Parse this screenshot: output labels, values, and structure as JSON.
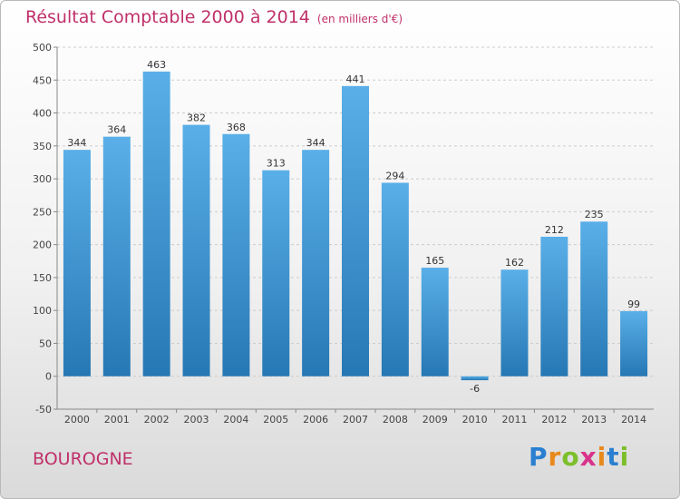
{
  "header": {
    "title": "Résultat Comptable 2000 à 2014",
    "subtitle": "(en milliers d'€)"
  },
  "footer": {
    "place": "BOUROGNE"
  },
  "logo": {
    "letters": [
      "P",
      "r",
      "o",
      "x",
      "i",
      "t",
      "i"
    ],
    "colors": [
      "#2a7fd0",
      "#e8891b",
      "#7cbf2a",
      "#d8338a",
      "#e8891b",
      "#2a7fd0",
      "#7cbf2a"
    ]
  },
  "colors": {
    "bar_top": "#5aafe8",
    "bar_bottom": "#2678b4",
    "grid": "#cccccc",
    "title": "#c0306a"
  },
  "chart_data": {
    "type": "bar",
    "title": "Résultat Comptable 2000 à 2014",
    "subtitle": "(en milliers d'€)",
    "categories": [
      "2000",
      "2001",
      "2002",
      "2003",
      "2004",
      "2005",
      "2006",
      "2007",
      "2008",
      "2009",
      "2010",
      "2011",
      "2012",
      "2013",
      "2014"
    ],
    "values": [
      344,
      364,
      463,
      382,
      368,
      313,
      344,
      441,
      294,
      165,
      -6,
      162,
      212,
      235,
      99
    ],
    "ylim": [
      -50,
      500
    ],
    "yticks": [
      -50,
      0,
      50,
      100,
      150,
      200,
      250,
      300,
      350,
      400,
      450,
      500
    ],
    "grid": true,
    "legend": "none"
  }
}
